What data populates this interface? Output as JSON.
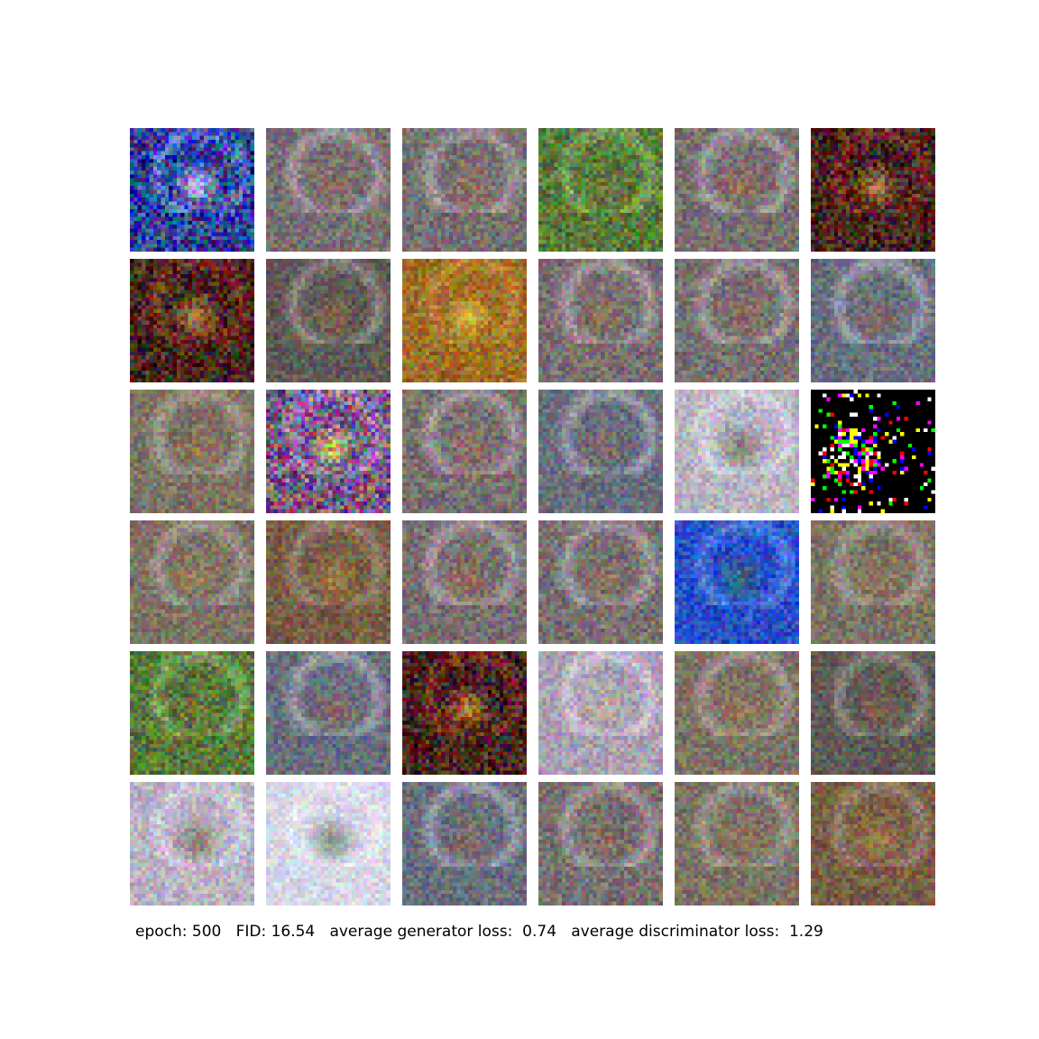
{
  "caption": "epoch: 500   FID: 16.54   average generator loss:  0.74   average discriminator loss:  1.29",
  "grid": {
    "rows": 6,
    "cols": 6,
    "tiles": [
      [
        "vivid-blue",
        "muted",
        "muted",
        "green",
        "muted",
        "dark-red"
      ],
      [
        "dark-red",
        "muted-dark",
        "gold",
        "muted",
        "muted",
        "muted-blue"
      ],
      [
        "muted-warm",
        "vivid-magenta",
        "muted",
        "muted-blue",
        "pale",
        "black-sparse"
      ],
      [
        "muted-warm",
        "brown",
        "muted",
        "muted",
        "blue",
        "muted-warm"
      ],
      [
        "green",
        "muted-blue",
        "dark-red",
        "pale-lilac",
        "muted-warm",
        "muted-dark"
      ],
      [
        "pale",
        "pale-white",
        "muted-blue",
        "muted",
        "muted-warm",
        "brown"
      ]
    ]
  }
}
